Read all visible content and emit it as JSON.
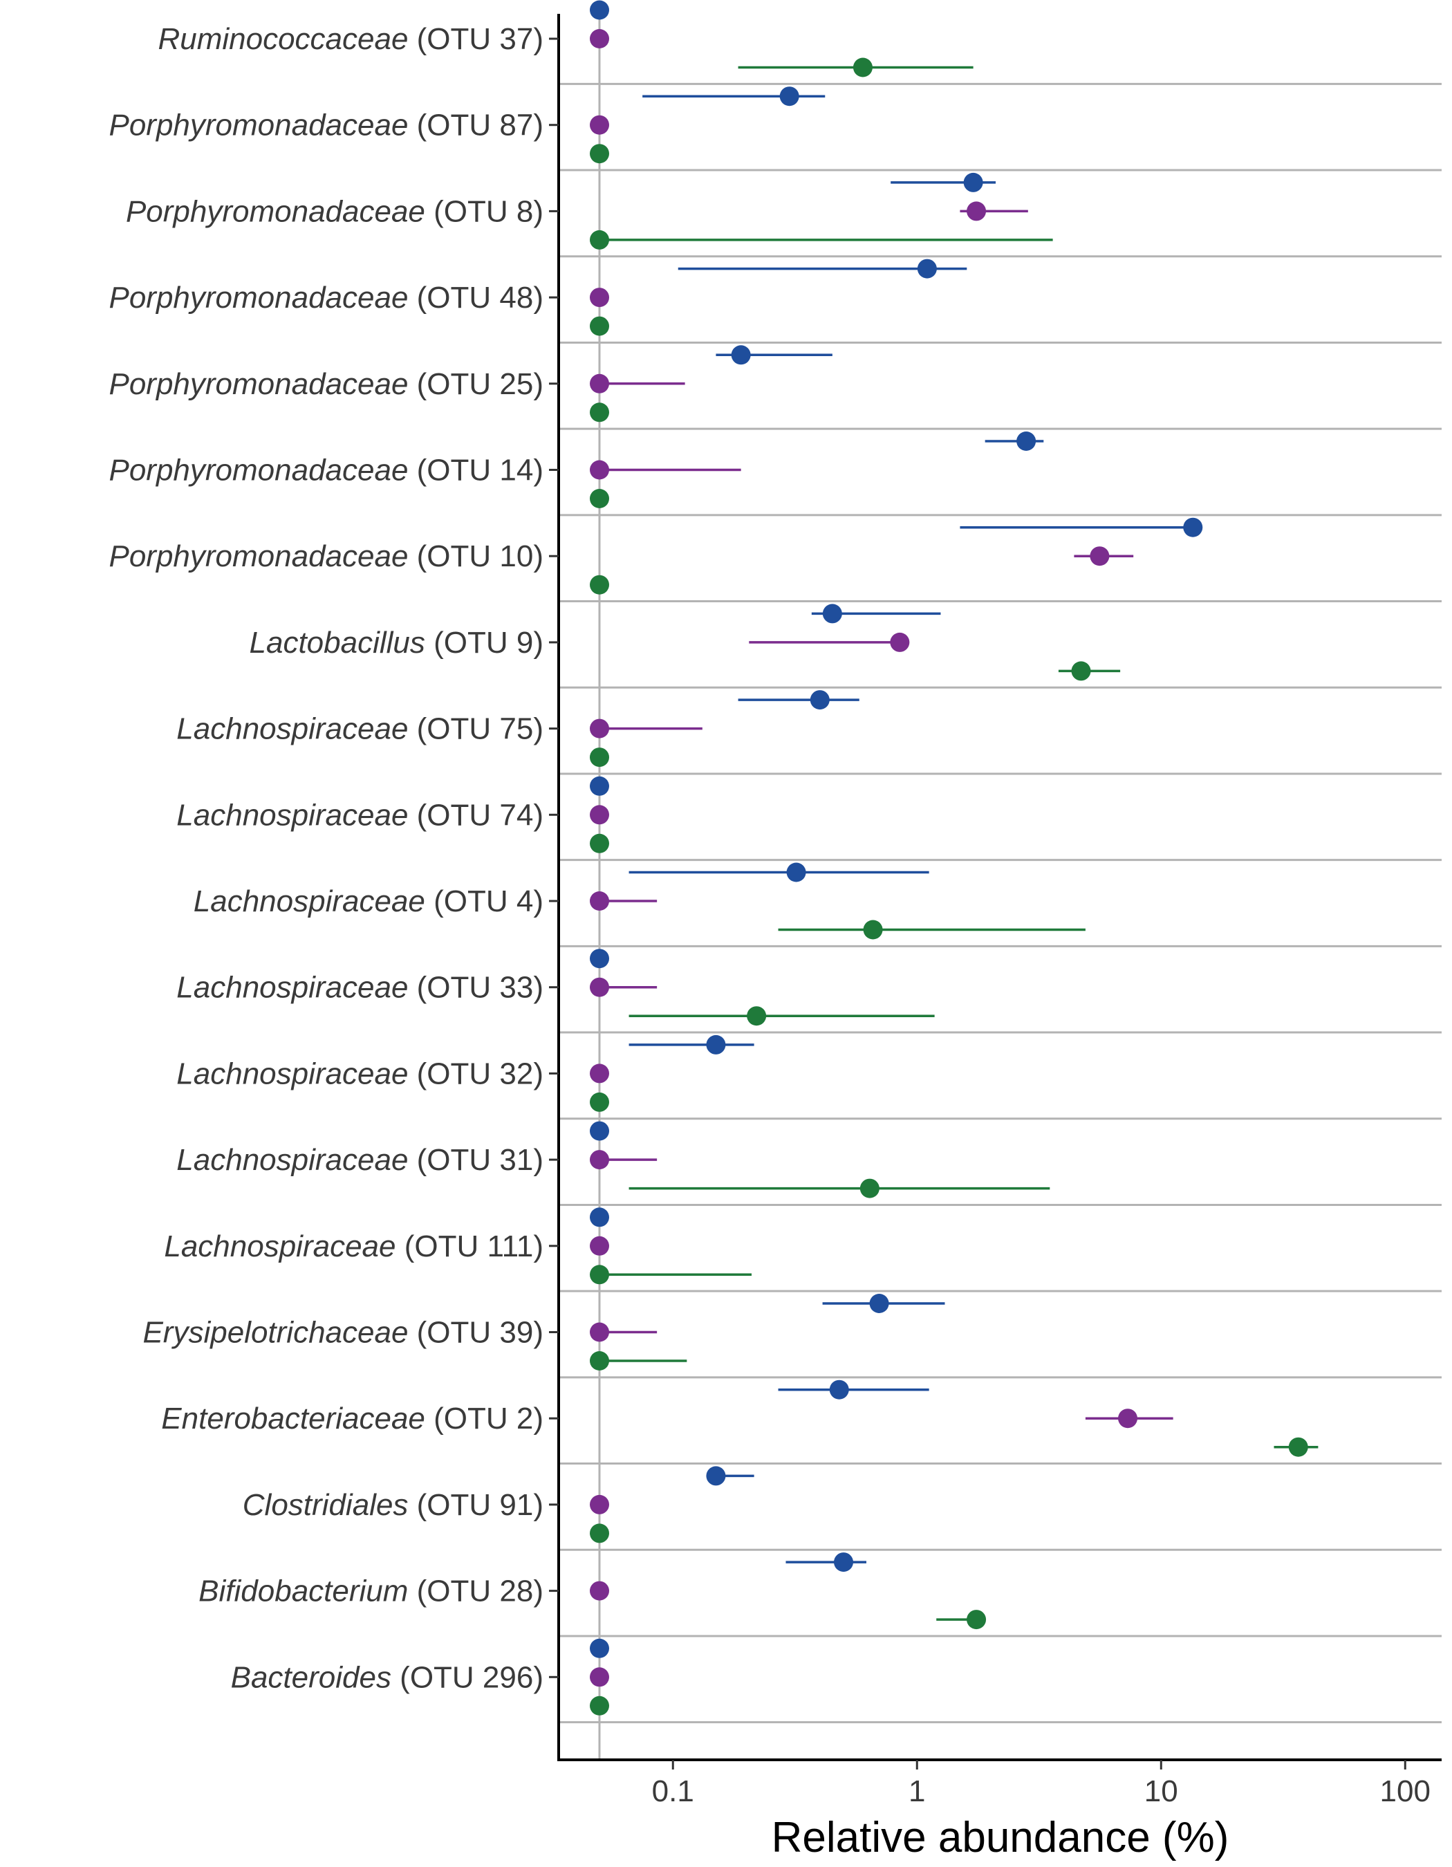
{
  "chart_data": {
    "type": "dot-errorbar",
    "xscale": "log",
    "xlim": [
      0.035,
      130
    ],
    "xticks": [
      0.1,
      1,
      10,
      100
    ],
    "xtick_labels": [
      "0.1",
      "1",
      "10",
      "100"
    ],
    "xlabel": "Relative abundance (%)",
    "grid": "horizontal category separators only",
    "legend": "none",
    "series_colors": [
      "#1f4e9c",
      "#7b2d8e",
      "#1f7a3a"
    ],
    "categories": [
      {
        "genus": "Ruminococcaceae",
        "otu": "(OTU 37)"
      },
      {
        "genus": "Porphyromonadaceae",
        "otu": "(OTU 87)"
      },
      {
        "genus": "Porphyromonadaceae",
        "otu": "(OTU 8)"
      },
      {
        "genus": "Porphyromonadaceae",
        "otu": "(OTU 48)"
      },
      {
        "genus": "Porphyromonadaceae",
        "otu": "(OTU 25)"
      },
      {
        "genus": "Porphyromonadaceae",
        "otu": "(OTU 14)"
      },
      {
        "genus": "Porphyromonadaceae",
        "otu": "(OTU 10)"
      },
      {
        "genus": "Lactobacillus",
        "otu": "(OTU 9)"
      },
      {
        "genus": "Lachnospiraceae",
        "otu": "(OTU 75)"
      },
      {
        "genus": "Lachnospiraceae",
        "otu": "(OTU 74)"
      },
      {
        "genus": "Lachnospiraceae",
        "otu": "(OTU 4)"
      },
      {
        "genus": "Lachnospiraceae",
        "otu": "(OTU 33)"
      },
      {
        "genus": "Lachnospiraceae",
        "otu": "(OTU 32)"
      },
      {
        "genus": "Lachnospiraceae",
        "otu": "(OTU 31)"
      },
      {
        "genus": "Lachnospiraceae",
        "otu": "(OTU 111)"
      },
      {
        "genus": "Erysipelotrichaceae",
        "otu": "(OTU 39)"
      },
      {
        "genus": "Enterobacteriaceae",
        "otu": "(OTU 2)"
      },
      {
        "genus": "Clostridiales",
        "otu": "(OTU 91)"
      },
      {
        "genus": "Bifidobacterium",
        "otu": "(OTU 28)"
      },
      {
        "genus": "Bacteroides",
        "otu": "(OTU 296)"
      }
    ],
    "series": [
      {
        "color": "#1f4e9c",
        "values": [
          0.05,
          0.3,
          1.7,
          1.1,
          0.19,
          2.8,
          13.5,
          0.45,
          0.4,
          0.05,
          0.32,
          0.05,
          0.15,
          0.05,
          0.05,
          0.7,
          0.48,
          0.15,
          0.5,
          0.05
        ],
        "low": [
          0.05,
          0.075,
          0.78,
          0.105,
          0.15,
          1.9,
          1.5,
          0.37,
          0.185,
          0.05,
          0.066,
          0.05,
          0.066,
          0.05,
          0.05,
          0.41,
          0.27,
          0.15,
          0.29,
          0.05
        ],
        "high": [
          0.05,
          0.42,
          2.1,
          1.6,
          0.45,
          3.3,
          13.5,
          1.25,
          0.58,
          0.05,
          1.12,
          0.05,
          0.215,
          0.05,
          0.05,
          1.3,
          1.12,
          0.215,
          0.62,
          0.05
        ]
      },
      {
        "color": "#7b2d8e",
        "values": [
          0.05,
          0.05,
          1.75,
          0.05,
          0.05,
          0.05,
          5.6,
          0.85,
          0.05,
          0.05,
          0.05,
          0.05,
          0.05,
          0.05,
          0.05,
          0.05,
          7.3,
          0.05,
          0.05,
          0.05
        ],
        "low": [
          0.05,
          0.05,
          1.5,
          0.05,
          0.05,
          0.05,
          4.4,
          0.205,
          0.05,
          0.05,
          0.05,
          0.05,
          0.05,
          0.05,
          0.05,
          0.05,
          4.9,
          0.05,
          0.05,
          0.05
        ],
        "high": [
          0.05,
          0.05,
          2.85,
          0.05,
          0.112,
          0.19,
          7.7,
          0.85,
          0.132,
          0.05,
          0.086,
          0.086,
          0.05,
          0.086,
          0.05,
          0.086,
          11.2,
          0.05,
          0.05,
          0.05
        ]
      },
      {
        "color": "#1f7a3a",
        "values": [
          0.6,
          0.05,
          0.05,
          0.05,
          0.05,
          0.05,
          0.05,
          4.7,
          0.05,
          0.05,
          0.66,
          0.22,
          0.05,
          0.64,
          0.05,
          0.05,
          36.5,
          0.05,
          1.75,
          0.05
        ],
        "low": [
          0.185,
          0.05,
          0.05,
          0.05,
          0.05,
          0.05,
          0.05,
          3.8,
          0.05,
          0.05,
          0.27,
          0.066,
          0.05,
          0.066,
          0.05,
          0.05,
          29,
          0.05,
          1.2,
          0.05
        ],
        "high": [
          1.7,
          0.05,
          3.6,
          0.05,
          0.05,
          0.05,
          0.05,
          6.8,
          0.05,
          0.05,
          4.9,
          1.18,
          0.05,
          3.5,
          0.21,
          0.114,
          44,
          0.05,
          1.75,
          0.05
        ]
      }
    ],
    "reference_line_x": 0.05
  }
}
